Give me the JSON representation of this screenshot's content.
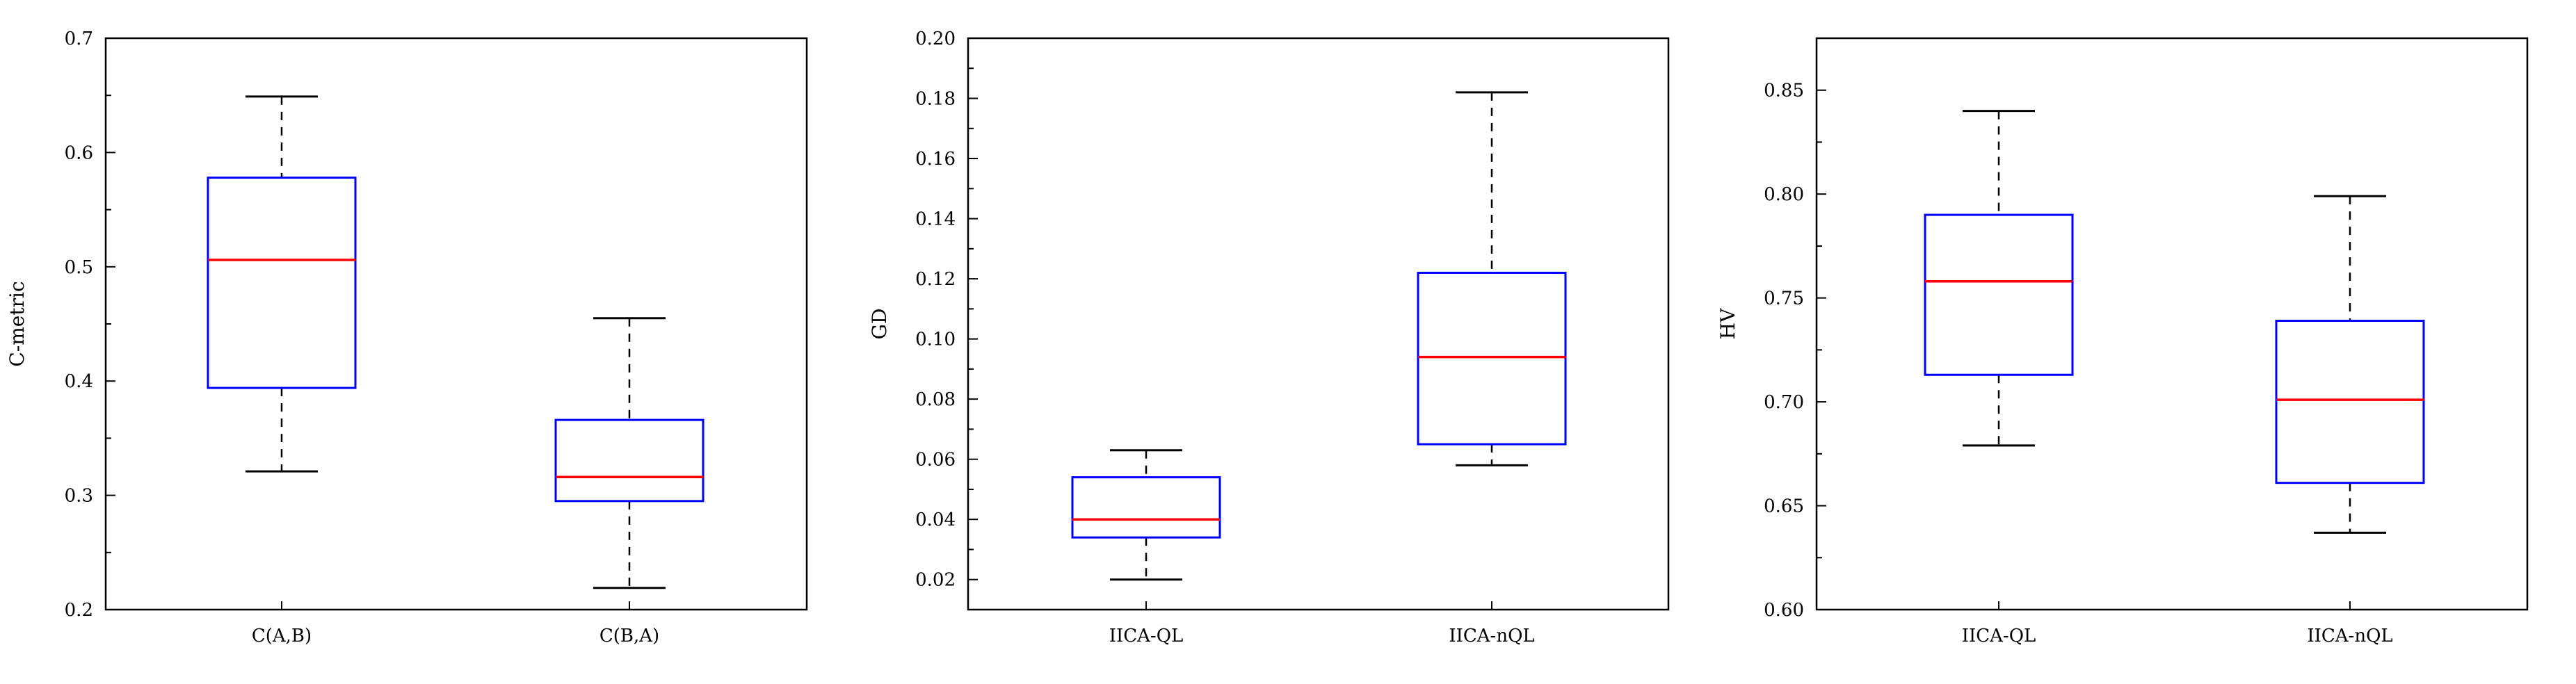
{
  "colors": {
    "box": "#0000ff",
    "median": "#ff0000",
    "whisker": "#000000",
    "axis": "#000000"
  },
  "chart_data": [
    {
      "type": "box",
      "title": "",
      "xlabel": "",
      "ylabel": "C-metric",
      "ylim": [
        0.2,
        0.7
      ],
      "yticks": [
        0.2,
        0.3,
        0.4,
        0.5,
        0.6,
        0.7
      ],
      "ytick_labels": [
        "0.2",
        "0.3",
        "0.4",
        "0.5",
        "0.6",
        "0.7"
      ],
      "categories": [
        "C(A,B)",
        "C(B,A)"
      ],
      "boxes": [
        {
          "min": 0.321,
          "q1": 0.394,
          "median": 0.506,
          "q3": 0.578,
          "max": 0.649
        },
        {
          "min": 0.219,
          "q1": 0.295,
          "median": 0.316,
          "q3": 0.366,
          "max": 0.455
        }
      ],
      "grid": false
    },
    {
      "type": "box",
      "title": "",
      "xlabel": "",
      "ylabel": "GD",
      "ylim": [
        0.01,
        0.2
      ],
      "yticks": [
        0.02,
        0.04,
        0.06,
        0.08,
        0.1,
        0.12,
        0.14,
        0.16,
        0.18,
        0.2
      ],
      "ytick_labels": [
        "0.02",
        "0.04",
        "0.06",
        "0.08",
        "0.10",
        "0.12",
        "0.14",
        "0.16",
        "0.18",
        "0.20"
      ],
      "categories": [
        "IICA-QL",
        "IICA-nQL"
      ],
      "boxes": [
        {
          "min": 0.02,
          "q1": 0.034,
          "median": 0.04,
          "q3": 0.054,
          "max": 0.063
        },
        {
          "min": 0.058,
          "q1": 0.065,
          "median": 0.094,
          "q3": 0.122,
          "max": 0.182
        }
      ],
      "grid": false
    },
    {
      "type": "box",
      "title": "",
      "xlabel": "",
      "ylabel": "HV",
      "ylim": [
        0.6,
        0.875
      ],
      "yticks": [
        0.6,
        0.65,
        0.7,
        0.75,
        0.8,
        0.85
      ],
      "ytick_labels": [
        "0.60",
        "0.65",
        "0.70",
        "0.75",
        "0.80",
        "0.85"
      ],
      "categories": [
        "IICA-QL",
        "IICA-nQL"
      ],
      "boxes": [
        {
          "min": 0.679,
          "q1": 0.713,
          "median": 0.758,
          "q3": 0.79,
          "max": 0.84
        },
        {
          "min": 0.637,
          "q1": 0.661,
          "median": 0.701,
          "q3": 0.739,
          "max": 0.799
        }
      ],
      "grid": false
    }
  ]
}
